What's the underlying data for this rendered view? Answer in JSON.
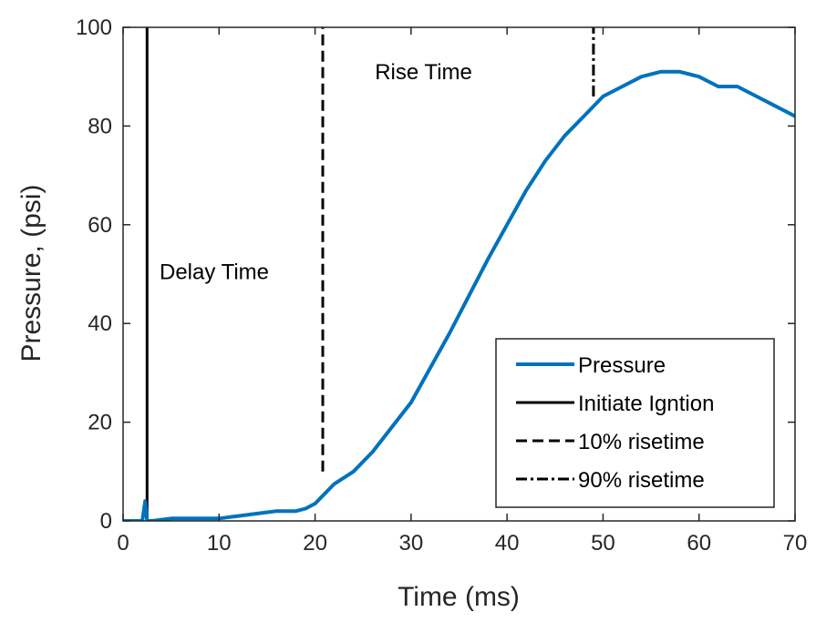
{
  "chart_data": {
    "type": "line",
    "xlabel": "Time (ms)",
    "ylabel": "Pressure, (psi)",
    "xlim": [
      0,
      70
    ],
    "ylim": [
      0,
      100
    ],
    "xticks": [
      0,
      10,
      20,
      30,
      40,
      50,
      60,
      70
    ],
    "yticks": [
      0,
      20,
      40,
      60,
      80,
      100
    ],
    "grid": false,
    "legend_position": "bottom-right",
    "series": [
      {
        "name": "Pressure",
        "color": "#0072BD",
        "style": "solid",
        "x": [
          0,
          2,
          2.3,
          2.5,
          3,
          5,
          8,
          10,
          12,
          14,
          16,
          18,
          19,
          20,
          21,
          22,
          24,
          26,
          28,
          30,
          32,
          34,
          36,
          38,
          40,
          42,
          44,
          46,
          48,
          50,
          52,
          54,
          56,
          58,
          60,
          62,
          64,
          66,
          68,
          70
        ],
        "y": [
          0,
          0,
          4,
          0,
          0,
          0.5,
          0.5,
          0.5,
          1,
          1.5,
          2,
          2,
          2.5,
          3.5,
          5.5,
          7.5,
          10,
          14,
          19,
          24,
          31,
          38,
          45.5,
          53,
          60,
          67,
          73,
          78,
          82,
          86,
          88,
          90,
          91,
          91,
          90,
          88,
          88,
          86,
          84,
          82
        ]
      },
      {
        "name": "Initiate Ignition",
        "legend_label": "Initiate Igntion",
        "color": "#000000",
        "style": "solid",
        "x": [
          2.5,
          2.5
        ],
        "y": [
          0,
          100
        ]
      },
      {
        "name": "10% risetime",
        "color": "#000000",
        "style": "dashed",
        "x": [
          20.8,
          20.8
        ],
        "y": [
          10,
          100
        ]
      },
      {
        "name": "90% risetime",
        "color": "#000000",
        "style": "dashdot",
        "x": [
          49,
          49
        ],
        "y": [
          86,
          100
        ]
      }
    ],
    "annotations": [
      {
        "text": "Delay Time",
        "x": 9.5,
        "y": 49
      },
      {
        "text": "Rise Time",
        "x": 31.3,
        "y": 89.5
      }
    ]
  }
}
